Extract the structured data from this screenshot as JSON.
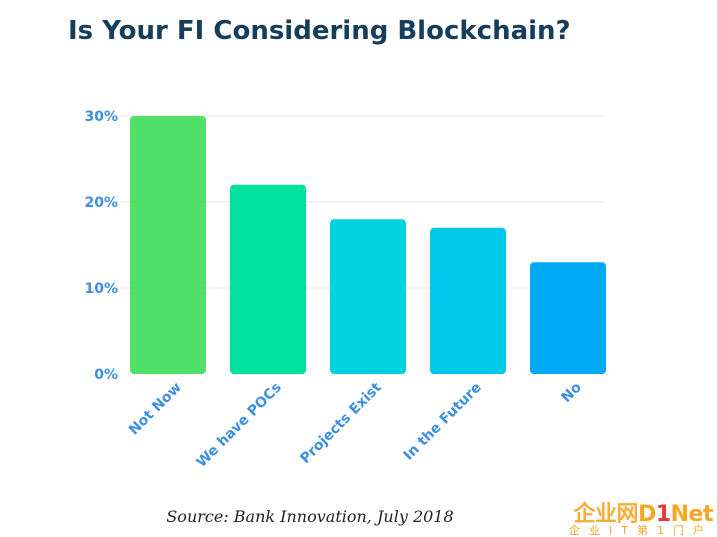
{
  "title": "Is Your FI Considering Blockchain?",
  "source": "Source: Bank Innovation, July 2018",
  "watermark": {
    "main_cn": "企业网",
    "main_d": "D",
    "main_one": "1",
    "main_net": "Net",
    "sub": "企业IT第1门户"
  },
  "colors": {
    "title": "#163e5c",
    "axis_label": "#3d8fe0",
    "gridline": "#dfe6ee"
  },
  "chart_data": {
    "type": "bar",
    "categories": [
      "Not Now",
      "We have POCs",
      "Projects Exist",
      "In the Future",
      "No"
    ],
    "values": [
      30,
      22,
      18,
      17,
      13
    ],
    "colors": [
      "#4fe06a",
      "#00e0a0",
      "#00d2e0",
      "#00c8e8",
      "#00aaf5"
    ],
    "ylim": [
      0,
      30
    ],
    "yticks": [
      0,
      10,
      20,
      30
    ],
    "ytick_labels": [
      "0%",
      "10%",
      "20%",
      "30%"
    ],
    "grid": true,
    "legend": "none"
  }
}
